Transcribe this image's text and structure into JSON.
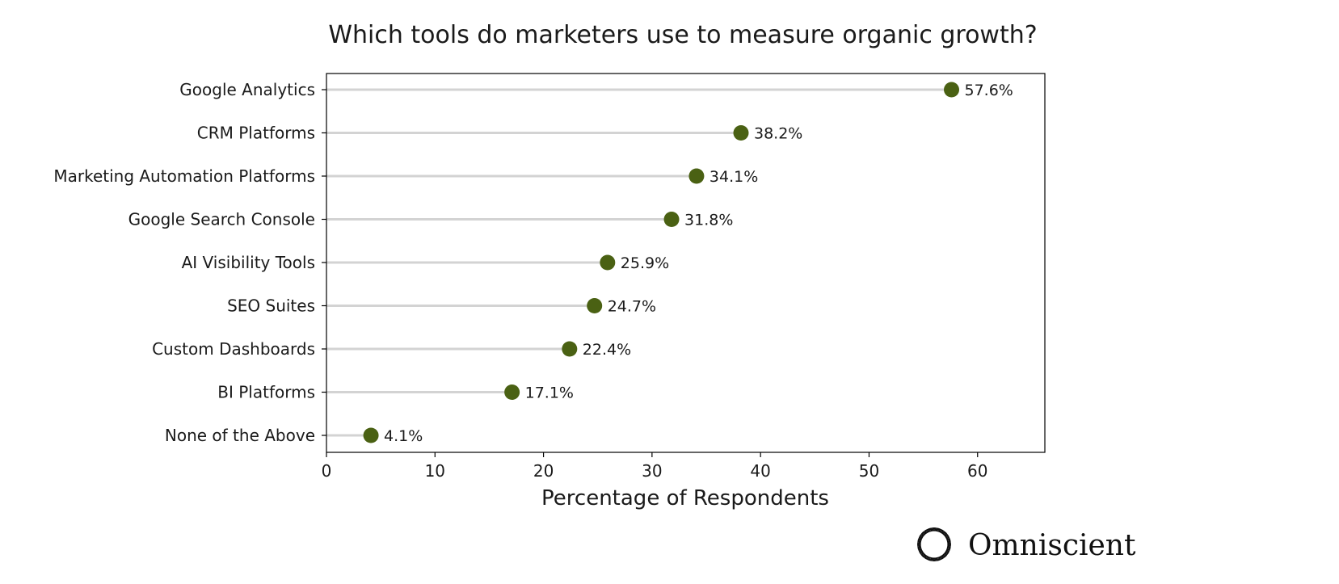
{
  "chart_data": {
    "type": "lollipop",
    "title": "Which tools do marketers use to measure organic growth?",
    "xlabel": "Percentage of Respondents",
    "ylabel": "",
    "xlim": [
      0,
      66.2
    ],
    "xticks": [
      0,
      10,
      20,
      30,
      40,
      50,
      60
    ],
    "grid": false,
    "categories": [
      "Google Analytics",
      "CRM Platforms",
      "Marketing Automation Platforms",
      "Google Search Console",
      "AI Visibility Tools",
      "SEO Suites",
      "Custom Dashboards",
      "BI Platforms",
      "None of the Above"
    ],
    "values": [
      57.6,
      38.2,
      34.1,
      31.8,
      25.9,
      24.7,
      22.4,
      17.1,
      4.1
    ],
    "value_labels": [
      "57.6%",
      "38.2%",
      "34.1%",
      "31.8%",
      "25.9%",
      "24.7%",
      "22.4%",
      "17.1%",
      "4.1%"
    ],
    "colors": {
      "marker": "#4a6113",
      "stem": "#d3d3d3",
      "axis": "#000000"
    }
  },
  "brand": {
    "name": "Omniscient",
    "icon": "omniscient-logo-icon"
  }
}
